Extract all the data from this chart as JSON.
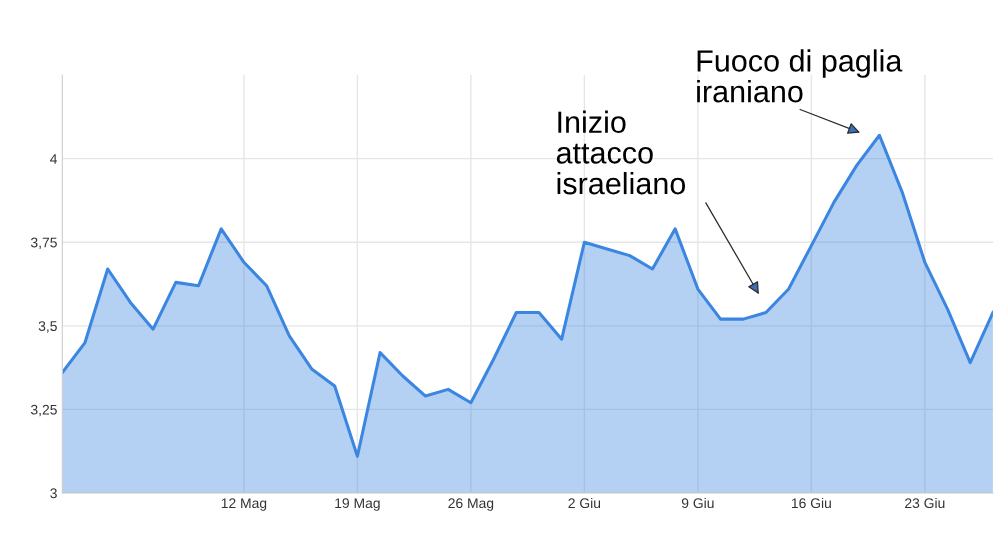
{
  "chart_data": {
    "type": "area",
    "categories": [
      null,
      null,
      null,
      null,
      null,
      null,
      null,
      null,
      "12 Mag",
      null,
      null,
      null,
      null,
      "19 Mag",
      null,
      null,
      null,
      null,
      "26 Mag",
      null,
      null,
      null,
      null,
      "2 Giu",
      null,
      null,
      null,
      null,
      "9 Giu",
      null,
      null,
      null,
      null,
      "16 Giu",
      null,
      null,
      null,
      null,
      "23 Giu",
      null,
      null,
      null
    ],
    "series": [
      {
        "color": "#3b86e0",
        "values": [
          3.36,
          3.45,
          3.67,
          3.57,
          3.49,
          3.63,
          3.62,
          3.79,
          3.69,
          3.62,
          3.47,
          3.37,
          3.32,
          3.11,
          3.42,
          3.35,
          3.29,
          3.31,
          3.27,
          3.4,
          3.54,
          3.54,
          3.46,
          3.75,
          3.73,
          3.71,
          3.67,
          3.79,
          3.61,
          3.52,
          3.52,
          3.54,
          3.61,
          3.74,
          3.87,
          3.98,
          4.07,
          3.9,
          3.69,
          3.55,
          3.39,
          3.54
        ]
      }
    ],
    "ylim": [
      3,
      4.25
    ],
    "yticks": [
      3,
      {
        "value": 3.25,
        "label": "3,25"
      },
      {
        "value": 3.5,
        "label": "3,5"
      },
      {
        "value": 3.75,
        "label": "3,75"
      },
      4
    ],
    "grid": true,
    "annotations": [
      "Inizio\nattacco\nisraeliano",
      "Fuoco di paglia\niraniano"
    ]
  }
}
